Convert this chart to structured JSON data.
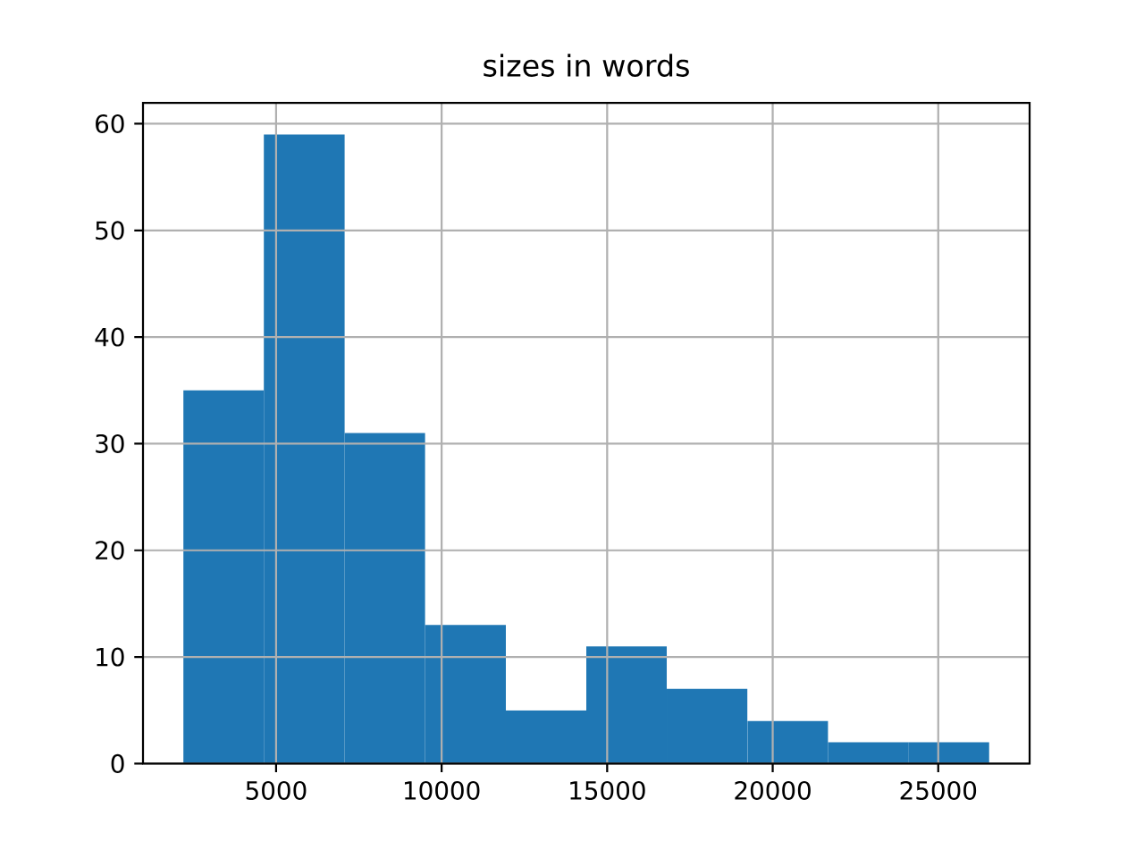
{
  "chart_data": {
    "type": "histogram",
    "title": "sizes in words",
    "bins": [
      2200,
      4630,
      7070,
      9500,
      11940,
      14370,
      16800,
      19240,
      21670,
      24110,
      26540
    ],
    "values": [
      35,
      59,
      31,
      13,
      5,
      11,
      7,
      4,
      2,
      2
    ],
    "color": "#1f77b4",
    "xlim": [
      980,
      27760
    ],
    "ylim": [
      0,
      61.95
    ],
    "xticks": [
      5000,
      10000,
      15000,
      20000,
      25000
    ],
    "yticks": [
      0,
      10,
      20,
      30,
      40,
      50,
      60
    ],
    "grid": true
  }
}
